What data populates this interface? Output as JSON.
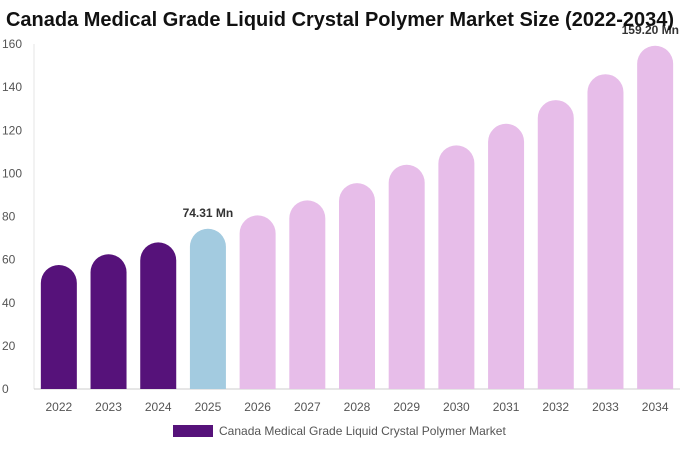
{
  "chart_data": {
    "type": "bar",
    "title": "Canada Medical Grade Liquid Crystal Polymer Market Size (2022-2034)",
    "categories": [
      "2022",
      "2023",
      "2024",
      "2025",
      "2026",
      "2027",
      "2028",
      "2029",
      "2030",
      "2031",
      "2032",
      "2033",
      "2034"
    ],
    "series": [
      {
        "name": "Canada Medical Grade Liquid Crystal Polymer Market",
        "values": [
          57.5,
          62.5,
          68.0,
          74.31,
          80.5,
          87.5,
          95.5,
          104.0,
          113.0,
          123.0,
          134.0,
          146.0,
          159.2
        ]
      }
    ],
    "bar_colors": [
      "#56127a",
      "#56127a",
      "#56127a",
      "#a3cbe0",
      "#e7bde9",
      "#e7bde9",
      "#e7bde9",
      "#e7bde9",
      "#e7bde9",
      "#e7bde9",
      "#e7bde9",
      "#e7bde9",
      "#e7bde9"
    ],
    "data_labels": [
      {
        "index": 3,
        "text": "74.31 Mn"
      },
      {
        "index": 12,
        "text": "159.20 Mn"
      }
    ],
    "ylim": [
      0,
      160
    ],
    "yticks": [
      0,
      20,
      40,
      60,
      80,
      100,
      120,
      140,
      160
    ],
    "xlabel": "",
    "ylabel": "",
    "grid": false,
    "legend_position": "bottom"
  }
}
